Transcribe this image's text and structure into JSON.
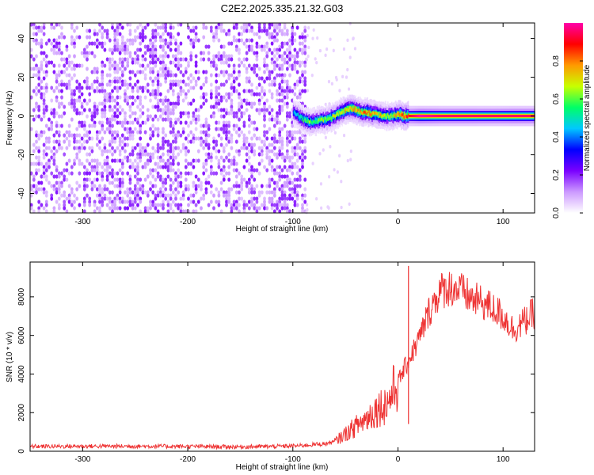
{
  "title": "C2E2.2025.335.21.32.G03",
  "chart_data": [
    {
      "type": "heatmap",
      "xlabel": "Height of straight line (km)",
      "ylabel": "Frequency (Hz)",
      "xlim": [
        -350,
        130
      ],
      "ylim": [
        -50,
        48
      ],
      "xticks": [
        -300,
        -200,
        -100,
        0,
        100
      ],
      "yticks": [
        -40,
        -20,
        0,
        20,
        40
      ],
      "colorbar": {
        "label": "Normalized spectral amplitude",
        "range": [
          0,
          1
        ],
        "ticks": [
          "0.0",
          "0.2",
          "0.4",
          "0.6",
          "0.8"
        ],
        "tick_values": [
          0,
          0.2,
          0.4,
          0.6,
          0.8
        ],
        "colors": [
          "#ffffff",
          "#cc99ff",
          "#7a00ff",
          "#0000ff",
          "#00c8ff",
          "#00ff66",
          "#c8ff00",
          "#ff9900",
          "#ff0000",
          "#ff00aa"
        ]
      },
      "features": {
        "noise_region_x": [
          -350,
          -88
        ],
        "noise_amplitude": 0.15,
        "signal_trace": {
          "x": [
            -100,
            -95,
            -90,
            -85,
            -80,
            -75,
            -70,
            -65,
            -60,
            -55,
            -50,
            -45,
            -40,
            -35,
            -30,
            -25,
            -20,
            -15,
            -10,
            -5,
            0,
            5,
            10,
            20,
            40,
            60,
            80,
            100,
            130
          ],
          "freq": [
            2,
            0,
            -2,
            -3,
            -3,
            -2,
            -2,
            -1,
            0,
            2,
            3,
            4,
            3,
            2,
            2,
            1,
            1,
            0,
            0,
            0,
            1,
            0,
            0,
            0,
            0,
            0,
            0,
            0,
            0
          ],
          "amplitude": [
            0.45,
            0.55,
            0.6,
            0.65,
            0.6,
            0.65,
            0.7,
            0.7,
            0.7,
            0.75,
            0.8,
            0.85,
            0.85,
            0.8,
            0.85,
            0.8,
            0.75,
            0.75,
            0.7,
            0.75,
            0.85,
            0.9,
            0.9,
            1.0,
            0.95,
            0.95,
            0.95,
            0.95,
            0.95
          ]
        }
      }
    },
    {
      "type": "line",
      "xlabel": "Height of straight line (km)",
      "ylabel": "SNR (10 * v/v)",
      "xlim": [
        -350,
        130
      ],
      "ylim": [
        0,
        9800
      ],
      "xticks": [
        -300,
        -200,
        -100,
        0,
        100
      ],
      "yticks": [
        0,
        2000,
        4000,
        6000,
        8000
      ],
      "series": [
        {
          "name": "SNR",
          "color": "#ee3333",
          "x": [
            -350,
            -300,
            -250,
            -200,
            -150,
            -120,
            -100,
            -90,
            -80,
            -70,
            -60,
            -50,
            -40,
            -30,
            -20,
            -10,
            0,
            10,
            20,
            30,
            40,
            50,
            60,
            70,
            80,
            90,
            100,
            110,
            120,
            130
          ],
          "values": [
            250,
            260,
            260,
            250,
            230,
            250,
            270,
            300,
            350,
            380,
            500,
            900,
            1300,
            1700,
            2200,
            2500,
            3600,
            4700,
            5800,
            7300,
            8300,
            8500,
            8300,
            7900,
            7700,
            7400,
            7000,
            6300,
            6700,
            7200
          ]
        }
      ],
      "annotations": [
        {
          "x": 10,
          "value": 9600,
          "label": "spike"
        }
      ]
    }
  ]
}
